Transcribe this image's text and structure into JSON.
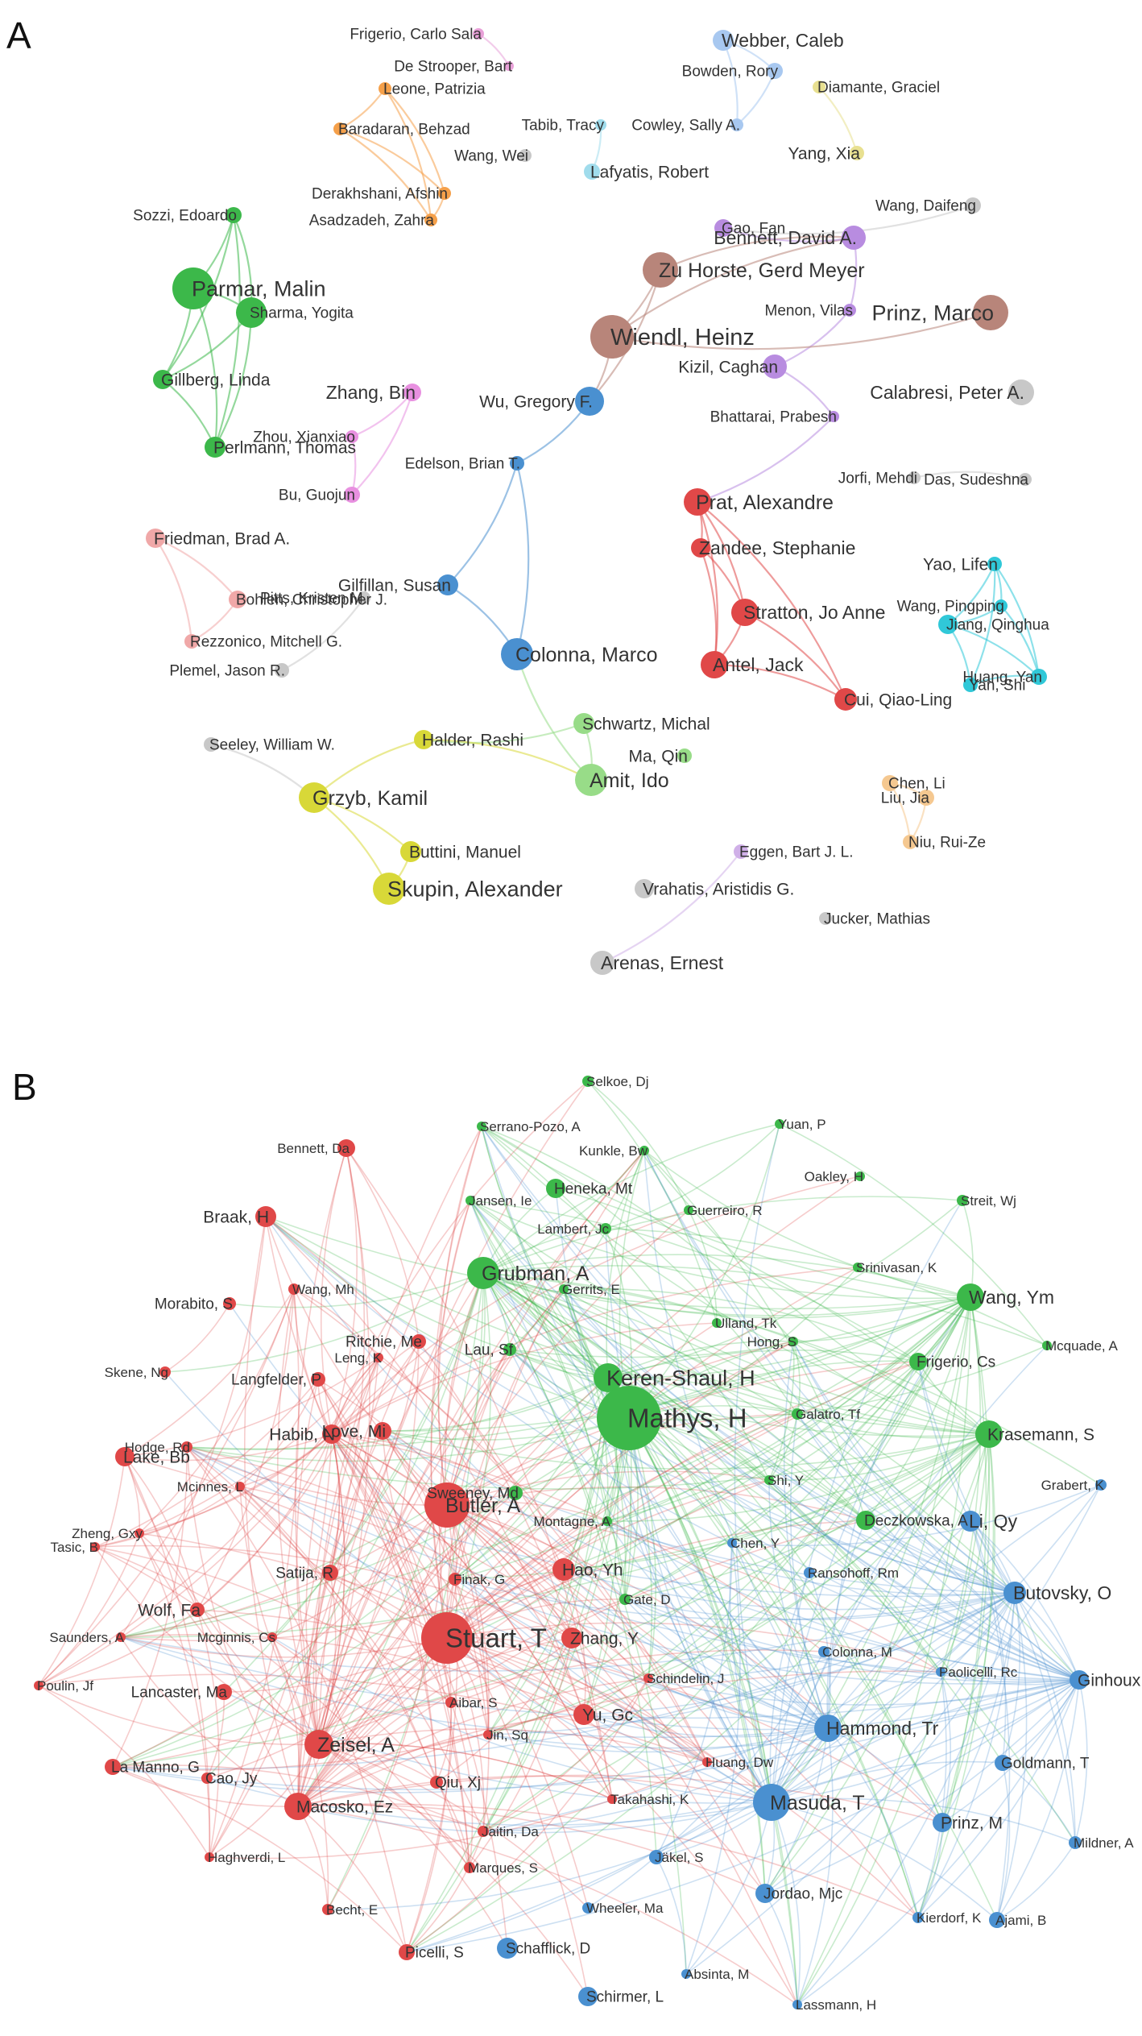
{
  "panels": [
    {
      "id": "A",
      "label": "A",
      "nodes": [
        {
          "label": "Frigerio, Carlo Sala",
          "color": "#e8a0d8"
        },
        {
          "label": "De Strooper, Bart",
          "color": "#e8a0d8"
        },
        {
          "label": "Webber, Caleb",
          "color": "#a8c8f0"
        },
        {
          "label": "Bowden, Rory",
          "color": "#a8c8f0"
        },
        {
          "label": "Diamante, Graciel",
          "color": "#e8e090"
        },
        {
          "label": "Cowley, Sally A.",
          "color": "#a8c8f0"
        },
        {
          "label": "Yang, Xia",
          "color": "#e8e090"
        },
        {
          "label": "Tabib, Tracy",
          "color": "#a0dcec"
        },
        {
          "label": "Leone, Patrizia",
          "color": "#f5a04a"
        },
        {
          "label": "Baradaran, Behzad",
          "color": "#f5a04a"
        },
        {
          "label": "Wang, Wei",
          "color": "#c8c8c8"
        },
        {
          "label": "Lafyatis, Robert",
          "color": "#a0dcec"
        },
        {
          "label": "Derakhshani, Afshin",
          "color": "#f5a04a"
        },
        {
          "label": "Asadzadeh, Zahra",
          "color": "#f5a04a"
        },
        {
          "label": "Gao, Fan",
          "color": "#b88ce0"
        },
        {
          "label": "Wang, Daifeng",
          "color": "#c8c8c8"
        },
        {
          "label": "Sozzi, Edoardo",
          "color": "#3cb84a"
        },
        {
          "label": "Bennett, David A.",
          "color": "#b88ce0"
        },
        {
          "label": "Zu Horste, Gerd Meyer",
          "color": "#b8857a"
        },
        {
          "label": "Parmar, Malin",
          "color": "#3cb84a"
        },
        {
          "label": "Sharma, Yogita",
          "color": "#3cb84a"
        },
        {
          "label": "Wiendl, Heinz",
          "color": "#b8857a"
        },
        {
          "label": "Menon, Vilas",
          "color": "#b88ce0"
        },
        {
          "label": "Prinz, Marco",
          "color": "#b8857a"
        },
        {
          "label": "Kizil, Caghan",
          "color": "#b88ce0"
        },
        {
          "label": "Gillberg, Linda",
          "color": "#3cb84a"
        },
        {
          "label": "Zhang, Bin",
          "color": "#e890e0"
        },
        {
          "label": "Calabresi, Peter A.",
          "color": "#c8c8c8"
        },
        {
          "label": "Wu, Gregory F.",
          "color": "#4a90d0"
        },
        {
          "label": "Bhattarai, Prabesh",
          "color": "#b88ce0"
        },
        {
          "label": "Zhou, Xianxiao",
          "color": "#e890e0"
        },
        {
          "label": "Perlmann, Thomas",
          "color": "#3cb84a"
        },
        {
          "label": "Edelson, Brian T.",
          "color": "#4a90d0"
        },
        {
          "label": "Bu, Guojun",
          "color": "#e890e0"
        },
        {
          "label": "Jorfi, Mehdi",
          "color": "#c8c8c8"
        },
        {
          "label": "Das, Sudeshna",
          "color": "#c8c8c8"
        },
        {
          "label": "Prat, Alexandre",
          "color": "#e04848"
        },
        {
          "label": "Friedman, Brad A.",
          "color": "#f0a8a8"
        },
        {
          "label": "Zandee, Stephanie",
          "color": "#e04848"
        },
        {
          "label": "Yao, Lifen",
          "color": "#30c8d8"
        },
        {
          "label": "Gilfillan, Susan",
          "color": "#4a90d0"
        },
        {
          "label": "Bohlen, Christopher J.",
          "color": "#f0a8a8"
        },
        {
          "label": "Pitts, Kristen M.",
          "color": "#c8c8c8"
        },
        {
          "label": "Stratton, Jo Anne",
          "color": "#e04848"
        },
        {
          "label": "Wang, Pingping",
          "color": "#30c8d8"
        },
        {
          "label": "Jiang, Qinghua",
          "color": "#30c8d8"
        },
        {
          "label": "Rezzonico, Mitchell G.",
          "color": "#f0a8a8"
        },
        {
          "label": "Colonna, Marco",
          "color": "#4a90d0"
        },
        {
          "label": "Antel, Jack",
          "color": "#e04848"
        },
        {
          "label": "Plemel, Jason R.",
          "color": "#c8c8c8"
        },
        {
          "label": "Yan, Shi",
          "color": "#30c8d8"
        },
        {
          "label": "Huang, Yan",
          "color": "#30c8d8"
        },
        {
          "label": "Cui, Qiao-Ling",
          "color": "#e04848"
        },
        {
          "label": "Schwartz, Michal",
          "color": "#98dc88"
        },
        {
          "label": "Seeley, William W.",
          "color": "#c8c8c8"
        },
        {
          "label": "Halder, Rashi",
          "color": "#d8d838"
        },
        {
          "label": "Ma, Qin",
          "color": "#98dc88"
        },
        {
          "label": "Grzyb, Kamil",
          "color": "#d8d838"
        },
        {
          "label": "Amit, Ido",
          "color": "#98dc88"
        },
        {
          "label": "Chen, Li",
          "color": "#f5c890"
        },
        {
          "label": "Liu, Jia",
          "color": "#f5c890"
        },
        {
          "label": "Niu, Rui-Ze",
          "color": "#f5c890"
        },
        {
          "label": "Buttini, Manuel",
          "color": "#d8d838"
        },
        {
          "label": "Eggen, Bart J. L.",
          "color": "#d0b0e8"
        },
        {
          "label": "Skupin, Alexander",
          "color": "#d8d838"
        },
        {
          "label": "Vrahatis, Aristidis G.",
          "color": "#c8c8c8"
        },
        {
          "label": "Jucker, Mathias",
          "color": "#c8c8c8"
        },
        {
          "label": "Arenas, Ernest",
          "color": "#c8c8c8"
        }
      ]
    },
    {
      "id": "B",
      "label": "B",
      "nodes": [
        {
          "label": "Selkoe, Dj",
          "color": "#3cb84a"
        },
        {
          "label": "Serrano-Pozo, A",
          "color": "#3cb84a"
        },
        {
          "label": "Yuan, P",
          "color": "#3cb84a"
        },
        {
          "label": "Bennett, Da",
          "color": "#e04848"
        },
        {
          "label": "Kunkle, Bw",
          "color": "#3cb84a"
        },
        {
          "label": "Heneka, Mt",
          "color": "#3cb84a"
        },
        {
          "label": "Oakley, H",
          "color": "#3cb84a"
        },
        {
          "label": "Jansen, Ie",
          "color": "#3cb84a"
        },
        {
          "label": "Streit, Wj",
          "color": "#3cb84a"
        },
        {
          "label": "Guerreiro, R",
          "color": "#3cb84a"
        },
        {
          "label": "Braak, H",
          "color": "#e04848"
        },
        {
          "label": "Lambert, Jc",
          "color": "#3cb84a"
        },
        {
          "label": "Srinivasan, K",
          "color": "#3cb84a"
        },
        {
          "label": "Grubman, A",
          "color": "#3cb84a"
        },
        {
          "label": "Morabito, S",
          "color": "#e04848"
        },
        {
          "label": "Wang, Mh",
          "color": "#e04848"
        },
        {
          "label": "Gerrits, E",
          "color": "#3cb84a"
        },
        {
          "label": "Wang, Ym",
          "color": "#3cb84a"
        },
        {
          "label": "Ulland, Tk",
          "color": "#3cb84a"
        },
        {
          "label": "Hong, S",
          "color": "#3cb84a"
        },
        {
          "label": "Mcquade, A",
          "color": "#3cb84a"
        },
        {
          "label": "Ritchie, Me",
          "color": "#e04848"
        },
        {
          "label": "Lau, Sf",
          "color": "#3cb84a"
        },
        {
          "label": "Skene, Ng",
          "color": "#e04848"
        },
        {
          "label": "Leng, K",
          "color": "#e04848"
        },
        {
          "label": "Frigerio, Cs",
          "color": "#3cb84a"
        },
        {
          "label": "Keren-Shaul, H",
          "color": "#3cb84a"
        },
        {
          "label": "Langfelder, P",
          "color": "#e04848"
        },
        {
          "label": "Galatro, Tf",
          "color": "#3cb84a"
        },
        {
          "label": "Mathys, H",
          "color": "#3cb84a"
        },
        {
          "label": "Habib, N",
          "color": "#e04848"
        },
        {
          "label": "Love, Mi",
          "color": "#e04848"
        },
        {
          "label": "Krasemann, S",
          "color": "#3cb84a"
        },
        {
          "label": "Lake, Bb",
          "color": "#e04848"
        },
        {
          "label": "Hodge, Rd",
          "color": "#e04848"
        },
        {
          "label": "Grabert, K",
          "color": "#4a90d0"
        },
        {
          "label": "Mcinnes, L",
          "color": "#e04848"
        },
        {
          "label": "Shi, Y",
          "color": "#3cb84a"
        },
        {
          "label": "Butler, A",
          "color": "#e04848"
        },
        {
          "label": "Sweeney, Md",
          "color": "#3cb84a"
        },
        {
          "label": "Deczkowska, A",
          "color": "#3cb84a"
        },
        {
          "label": "Li, Qy",
          "color": "#4a90d0"
        },
        {
          "label": "Zheng, Gxy",
          "color": "#e04848"
        },
        {
          "label": "Montagne, A",
          "color": "#3cb84a"
        },
        {
          "label": "Chen, Y",
          "color": "#4a90d0"
        },
        {
          "label": "Tasic, B",
          "color": "#e04848"
        },
        {
          "label": "Hao, Yh",
          "color": "#e04848"
        },
        {
          "label": "Ransohoff, Rm",
          "color": "#4a90d0"
        },
        {
          "label": "Satija, R",
          "color": "#e04848"
        },
        {
          "label": "Finak, G",
          "color": "#e04848"
        },
        {
          "label": "Butovsky, O",
          "color": "#4a90d0"
        },
        {
          "label": "Wolf, Fa",
          "color": "#e04848"
        },
        {
          "label": "Gate, D",
          "color": "#3cb84a"
        },
        {
          "label": "Stuart, T",
          "color": "#e04848"
        },
        {
          "label": "Zhang, Y",
          "color": "#e04848"
        },
        {
          "label": "Saunders, A",
          "color": "#e04848"
        },
        {
          "label": "Mcginnis, Cs",
          "color": "#e04848"
        },
        {
          "label": "Colonna, M",
          "color": "#4a90d0"
        },
        {
          "label": "Paolicelli, Rc",
          "color": "#4a90d0"
        },
        {
          "label": "Ginhoux, F",
          "color": "#4a90d0"
        },
        {
          "label": "Poulin, Jf",
          "color": "#e04848"
        },
        {
          "label": "Schindelin, J",
          "color": "#e04848"
        },
        {
          "label": "Lancaster, Ma",
          "color": "#e04848"
        },
        {
          "label": "Aibar, S",
          "color": "#e04848"
        },
        {
          "label": "Yu, Gc",
          "color": "#e04848"
        },
        {
          "label": "Hammond, Tr",
          "color": "#4a90d0"
        },
        {
          "label": "Zeisel, A",
          "color": "#e04848"
        },
        {
          "label": "Jin, Sq",
          "color": "#e04848"
        },
        {
          "label": "Goldmann, T",
          "color": "#4a90d0"
        },
        {
          "label": "Huang, Dw",
          "color": "#e04848"
        },
        {
          "label": "La Manno, G",
          "color": "#e04848"
        },
        {
          "label": "Cao, Jy",
          "color": "#e04848"
        },
        {
          "label": "Qiu, Xj",
          "color": "#e04848"
        },
        {
          "label": "Masuda, T",
          "color": "#4a90d0"
        },
        {
          "label": "Macosko, Ez",
          "color": "#e04848"
        },
        {
          "label": "Takahashi, K",
          "color": "#e04848"
        },
        {
          "label": "Prinz, M",
          "color": "#4a90d0"
        },
        {
          "label": "Mildner, A",
          "color": "#4a90d0"
        },
        {
          "label": "Haghverdi, L",
          "color": "#e04848"
        },
        {
          "label": "Jaitin, Da",
          "color": "#e04848"
        },
        {
          "label": "Jäkel, S",
          "color": "#4a90d0"
        },
        {
          "label": "Marques, S",
          "color": "#e04848"
        },
        {
          "label": "Jordao, Mjc",
          "color": "#4a90d0"
        },
        {
          "label": "Becht, E",
          "color": "#e04848"
        },
        {
          "label": "Wheeler, Ma",
          "color": "#4a90d0"
        },
        {
          "label": "Kierdorf, K",
          "color": "#4a90d0"
        },
        {
          "label": "Ajami, B",
          "color": "#4a90d0"
        },
        {
          "label": "Schafflick, D",
          "color": "#4a90d0"
        },
        {
          "label": "Picelli, S",
          "color": "#e04848"
        },
        {
          "label": "Absinta, M",
          "color": "#4a90d0"
        },
        {
          "label": "Schirmer, L",
          "color": "#4a90d0"
        },
        {
          "label": "Lassmann, H",
          "color": "#4a90d0"
        }
      ]
    }
  ]
}
